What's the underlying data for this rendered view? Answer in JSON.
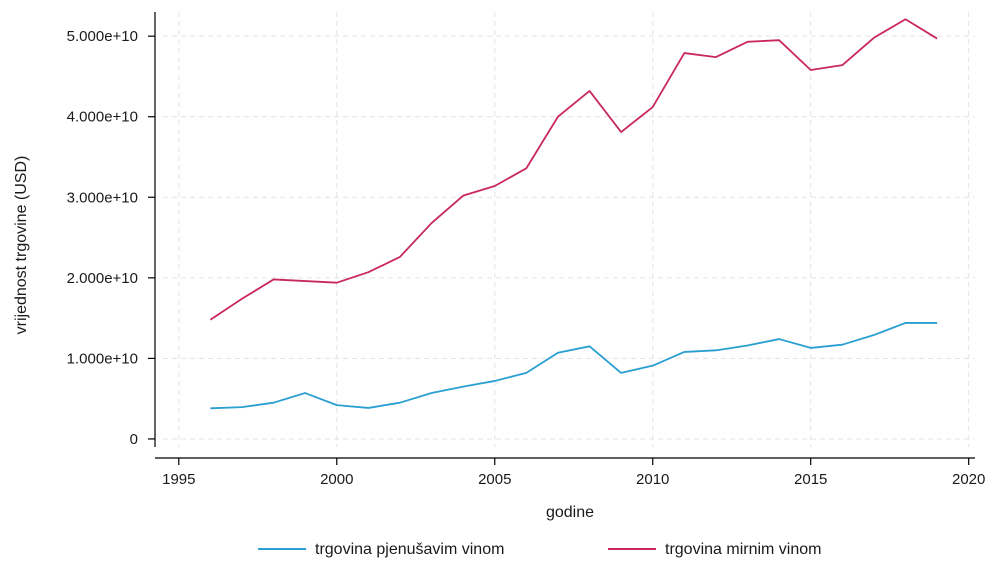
{
  "chart_data": {
    "type": "line",
    "title": "",
    "xlabel": "godine",
    "ylabel": "vrijednost trgovine (USD)",
    "xlim": [
      1994.5,
      2020.2
    ],
    "ylim": [
      -1000000000,
      53000000000
    ],
    "x_ticks": [
      1995,
      2000,
      2005,
      2010,
      2015,
      2020
    ],
    "x_tick_labels": [
      "1995",
      "2000",
      "2005",
      "2010",
      "2015",
      "2020"
    ],
    "y_ticks": [
      0,
      10000000000,
      20000000000,
      30000000000,
      40000000000,
      50000000000
    ],
    "y_tick_labels": [
      "0",
      "1.000e+10",
      "2.000e+10",
      "3.000e+10",
      "4.000e+10",
      "5.000e+10"
    ],
    "grid": true,
    "legend_position": "bottom",
    "x": [
      1996,
      1997,
      1998,
      1999,
      2000,
      2001,
      2002,
      2003,
      2004,
      2005,
      2006,
      2007,
      2008,
      2009,
      2010,
      2011,
      2012,
      2013,
      2014,
      2015,
      2016,
      2017,
      2018,
      2019
    ],
    "series": [
      {
        "name": "trgovina pjenušavim vinom",
        "color": "#2a9fd1",
        "values": [
          3800000000,
          3950000000,
          4500000000,
          5700000000,
          4200000000,
          3850000000,
          4500000000,
          5700000000,
          6500000000,
          7200000000,
          8200000000,
          10700000000,
          11500000000,
          8200000000,
          9100000000,
          10800000000,
          11000000000,
          11600000000,
          12400000000,
          11300000000,
          11700000000,
          12900000000,
          14400000000,
          14400000000
        ]
      },
      {
        "name": "trgovina mirnim vinom",
        "color": "#c8285c",
        "values": [
          14800000000,
          17400000000,
          19800000000,
          19600000000,
          19400000000,
          20700000000,
          22600000000,
          26800000000,
          30200000000,
          31400000000,
          33600000000,
          40000000000,
          43200000000,
          38100000000,
          41200000000,
          47900000000,
          47400000000,
          49300000000,
          49500000000,
          45800000000,
          46400000000,
          49800000000,
          52100000000,
          49700000000
        ]
      }
    ]
  }
}
